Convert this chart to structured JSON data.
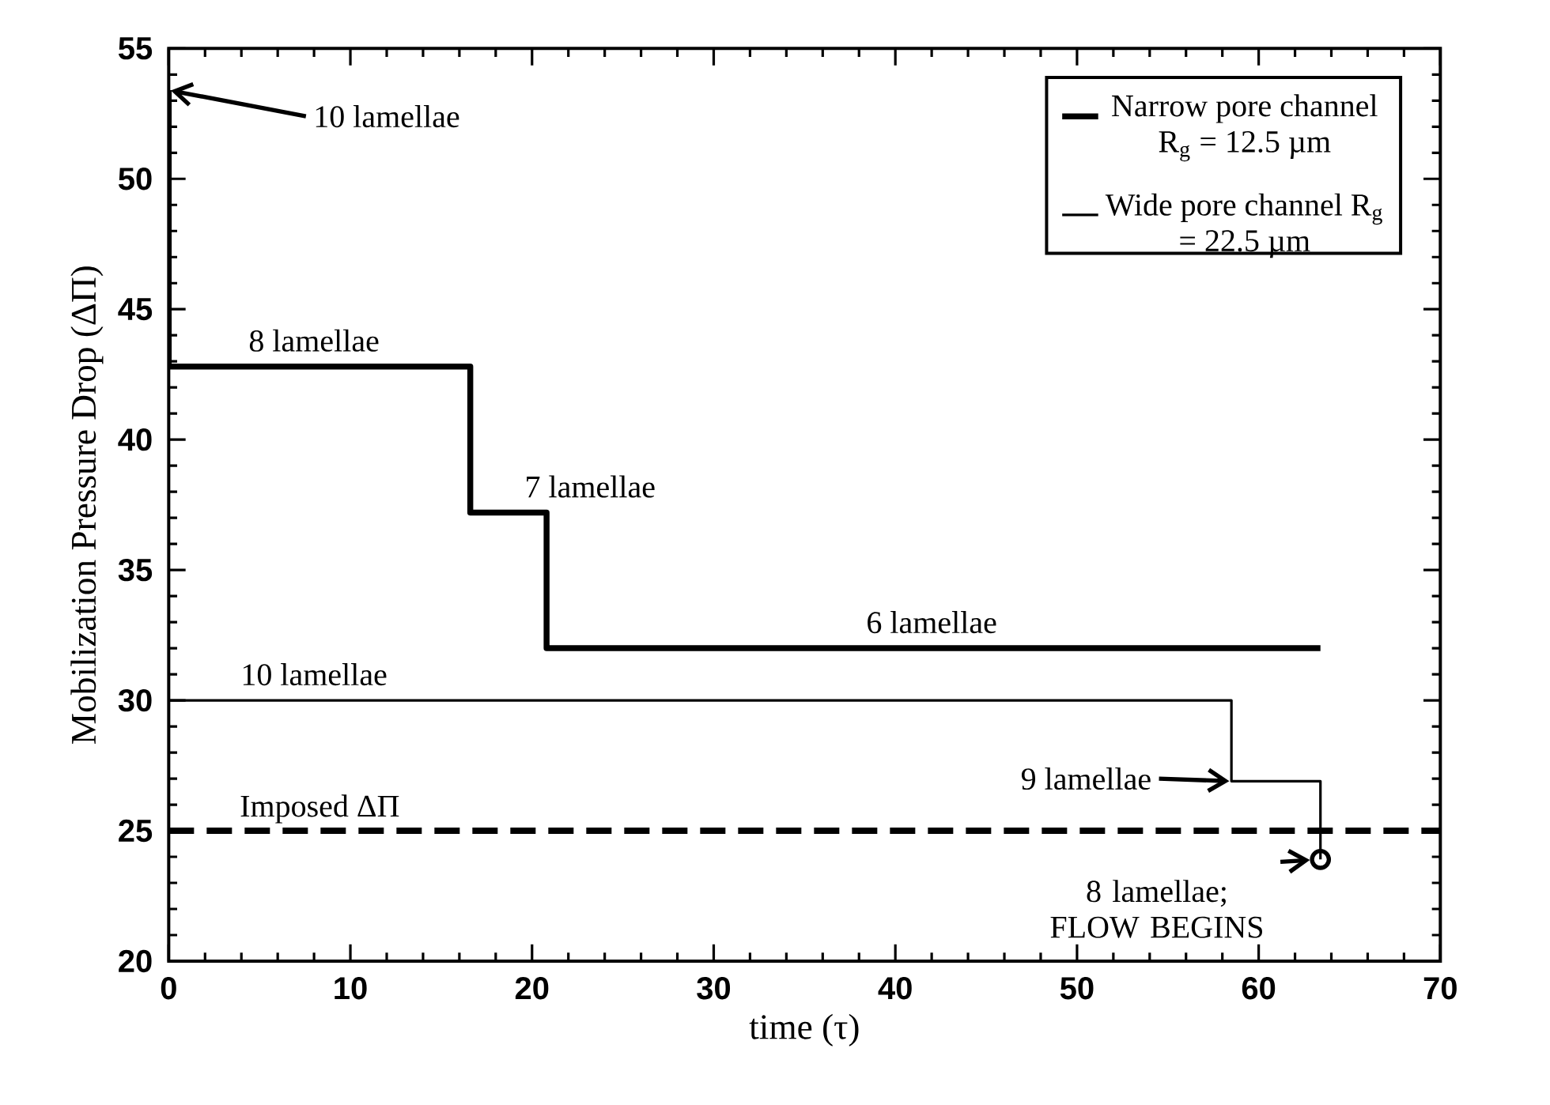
{
  "chart_data": {
    "type": "line",
    "xlabel": "time (τ)",
    "ylabel": "Mobilization Pressure Drop (ΔΠ)",
    "xlim": [
      0,
      70
    ],
    "ylim": [
      20,
      55
    ],
    "xticks": [
      0,
      10,
      20,
      30,
      40,
      50,
      60,
      70
    ],
    "yticks": [
      20,
      25,
      30,
      35,
      40,
      45,
      50,
      55
    ],
    "grid": false,
    "legend": "top right",
    "marker": "none",
    "series": [
      {
        "name": "Narrow pore channel R$_{g}$ = 12.5 µm",
        "color": "#000000",
        "x": [
          0,
          0,
          16.6,
          16.6,
          20.8,
          20.8,
          63.4
        ],
        "values": [
          53.4,
          42.8,
          42.8,
          37.2,
          37.2,
          32.0,
          32.0
        ]
      },
      {
        "name": "Wide pore channel R$_{g}$ = 22.5 µm",
        "color": "#000000",
        "x": [
          0,
          58.5,
          58.5,
          63.4,
          63.4
        ],
        "values": [
          30.0,
          30.0,
          26.9,
          26.9,
          23.9
        ]
      },
      {
        "type": "scatter",
        "marker": "circle",
        "color": "#000000",
        "x": [
          63.4
        ],
        "values": [
          23.9
        ]
      }
    ],
    "ref_lines": [
      {
        "axis": "y",
        "value": 25,
        "label": "Imposed ΔΠ",
        "line_style": "dashed",
        "color": "#000000"
      }
    ],
    "annotations": [
      {
        "text": "10 lamellae",
        "x": 0,
        "y": 53.4
      },
      {
        "text": "8 lamellae",
        "x": 8,
        "y": 42.8
      },
      {
        "text": "7 lamellae",
        "x": 18.7,
        "y": 37.2
      },
      {
        "text": "6 lamellae",
        "x": 42,
        "y": 32.0
      },
      {
        "text": "10 lamellae",
        "x": 8,
        "y": 30.0
      },
      {
        "text": "9 lamellae",
        "x": 58.5,
        "y": 26.9
      },
      {
        "text": "8 lamellae; FLOW BEGINS",
        "x": 63.4,
        "y": 23.9
      }
    ]
  }
}
